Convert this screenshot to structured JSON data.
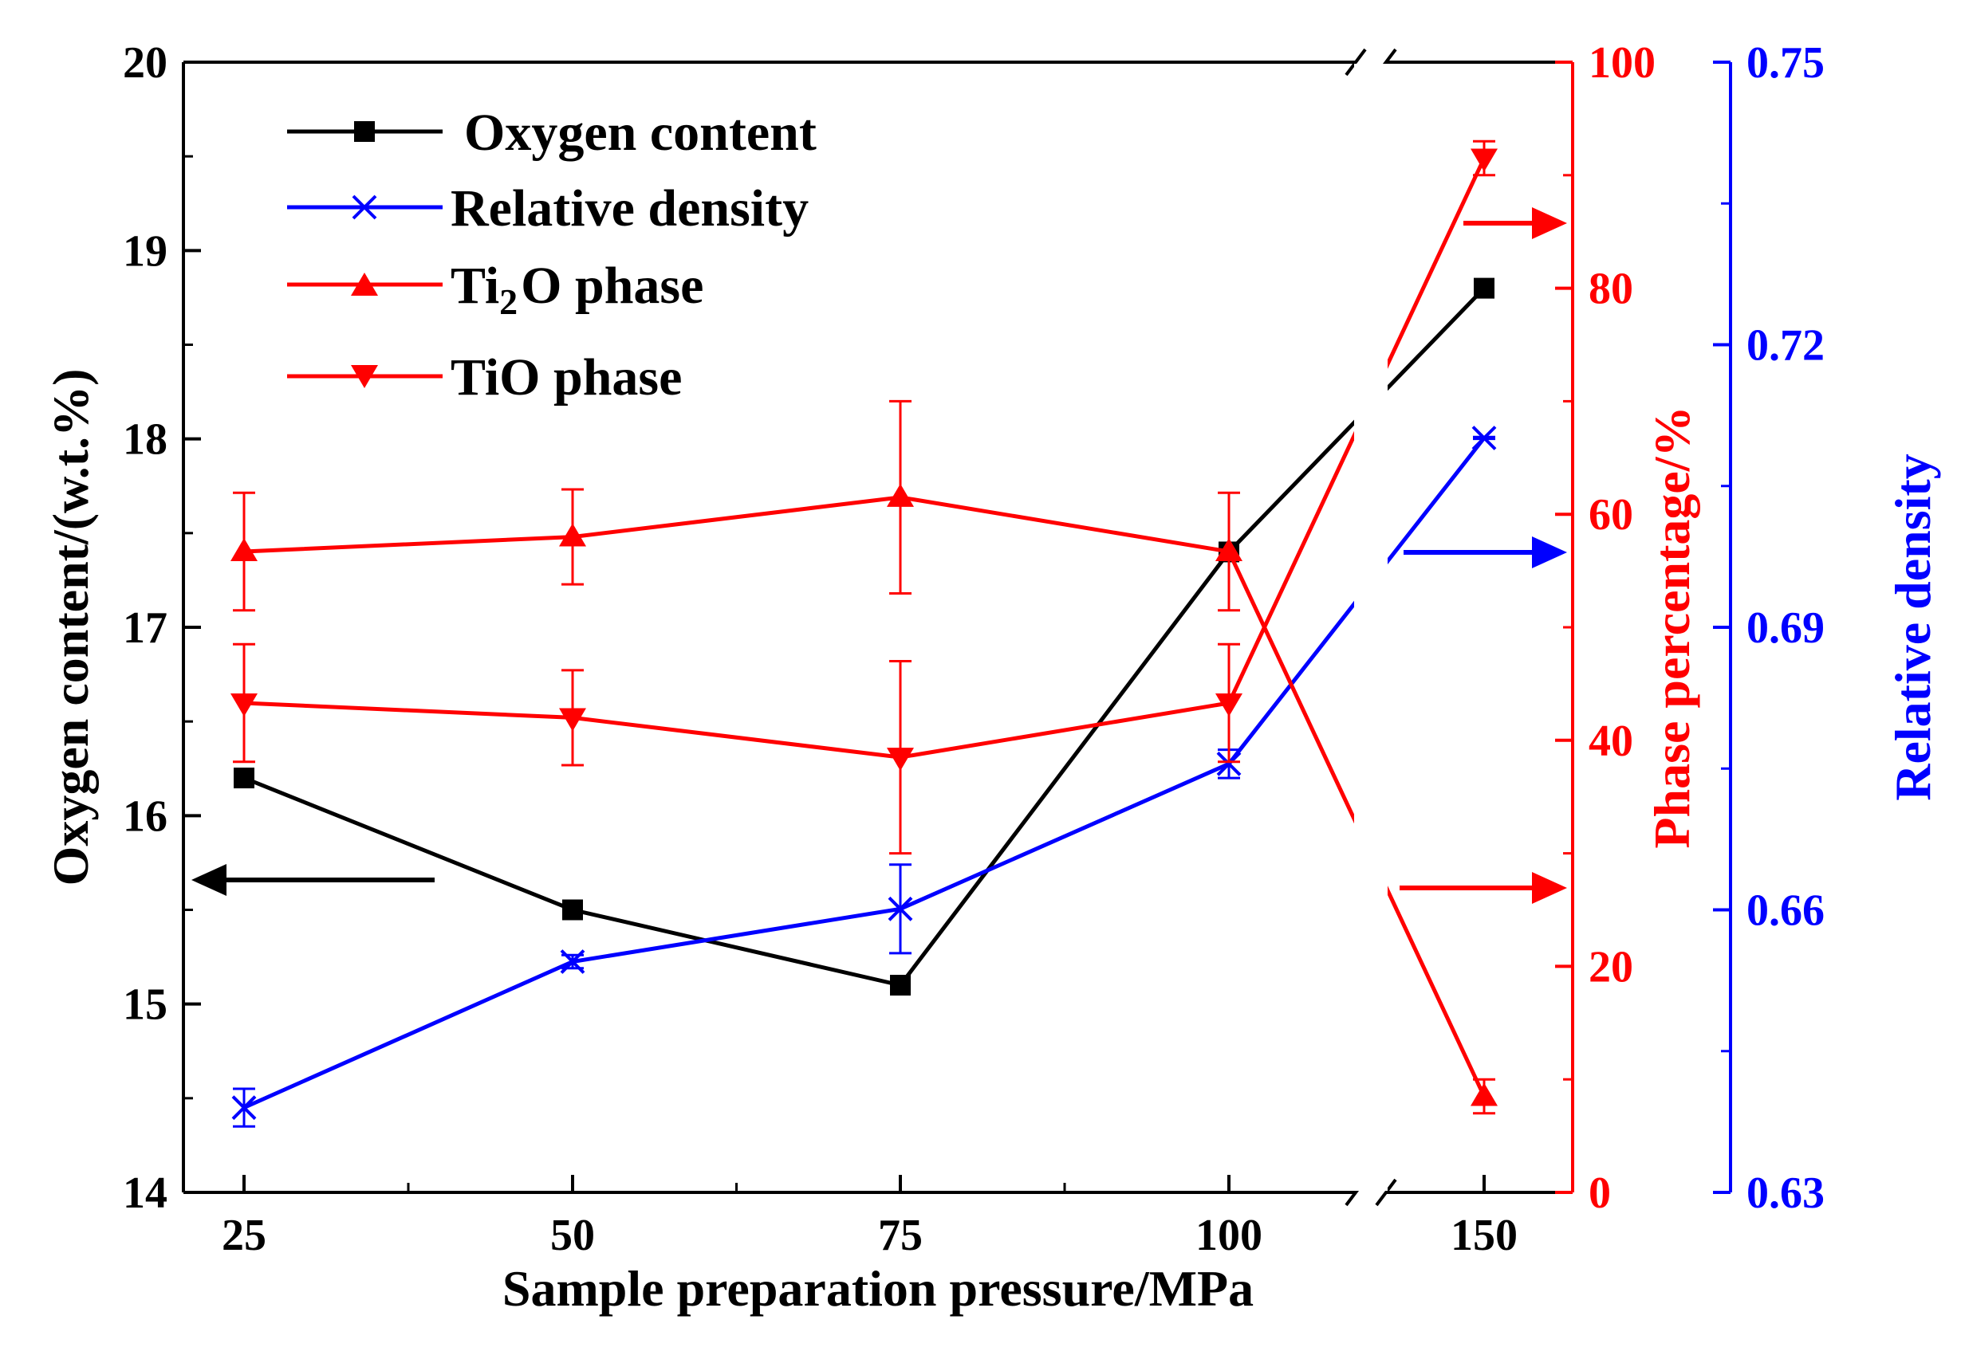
{
  "chart_data": {
    "type": "line",
    "x_categories": [
      "25",
      "50",
      "75",
      "100",
      "150"
    ],
    "xlabel": "Sample preparation pressure/MPa",
    "axis_break_between": [
      "100",
      "150"
    ],
    "left_axis": {
      "label": "Oxygen content/(w.t.%)",
      "range": [
        14,
        20
      ],
      "ticks": [
        "14",
        "15",
        "16",
        "17",
        "18",
        "19",
        "20"
      ],
      "color": "#000000"
    },
    "right_axis_1": {
      "label": "Phase percentage/%",
      "range": [
        0,
        100
      ],
      "ticks": [
        "0",
        "20",
        "40",
        "60",
        "80",
        "100"
      ],
      "color": "#ff0000"
    },
    "right_axis_2": {
      "label": "Relative density",
      "range": [
        0.63,
        0.75
      ],
      "ticks": [
        "0.63",
        "0.66",
        "0.69",
        "0.72",
        "0.75"
      ],
      "color": "#0000ff"
    },
    "series": [
      {
        "name": "Oxygen content",
        "axis": "left",
        "color": "#000000",
        "marker": "square",
        "values": [
          16.2,
          15.5,
          15.1,
          17.4,
          18.8
        ],
        "errors": [
          0,
          0,
          0,
          0,
          0
        ]
      },
      {
        "name": "Relative density",
        "axis": "right2",
        "color": "#0000ff",
        "marker": "x",
        "values": [
          0.639,
          0.6545,
          0.6601,
          0.6755,
          0.7101
        ],
        "errors": [
          0.002,
          0.0007,
          0.0047,
          0.0015,
          0.0001
        ]
      },
      {
        "name_parts": [
          "Ti",
          "2",
          "O phase"
        ],
        "axis": "right1",
        "color": "#ff0000",
        "marker": "triangle-up",
        "values": [
          56.7,
          58.0,
          61.5,
          56.7,
          8.5
        ],
        "errors": [
          5.2,
          4.2,
          8.5,
          5.2,
          1.5
        ]
      },
      {
        "name": "TiO phase",
        "axis": "right1",
        "color": "#ff0000",
        "marker": "triangle-down",
        "values": [
          43.3,
          42.0,
          38.5,
          43.3,
          91.5
        ],
        "errors": [
          5.2,
          4.2,
          8.5,
          5.2,
          1.5
        ]
      }
    ],
    "indicator_arrows": [
      {
        "target_axis": "left",
        "direction": "left",
        "color": "#000000"
      },
      {
        "target_axis": "right1",
        "direction": "right",
        "color": "#ff0000"
      },
      {
        "target_axis": "right1",
        "direction": "right",
        "color": "#ff0000"
      },
      {
        "target_axis": "right2",
        "direction": "right",
        "color": "#0000ff"
      }
    ],
    "legend_placement": "top-left",
    "grid": false
  }
}
